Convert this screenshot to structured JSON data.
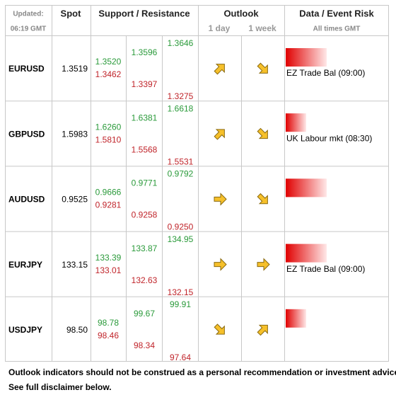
{
  "header": {
    "updated": "Updated:",
    "time": "06:19 GMT",
    "spot": "Spot",
    "levels": "Support / Resistance",
    "outlook": "Outlook",
    "day": "1 day",
    "week": "1 week",
    "data": "Data / Event Risk",
    "times": "All times GMT"
  },
  "rows": [
    {
      "pair": "EURUSD",
      "spot": "1.3519",
      "levels": [
        {
          "high": "1.3520",
          "low": "1.3462"
        },
        {
          "high": "1.3596",
          "low": "1.3397"
        },
        {
          "high": "1.3646",
          "low": "1.3275"
        }
      ],
      "outlook_day": "up-right",
      "outlook_week": "down-right",
      "risk": "high",
      "event": "EZ Trade Bal (09:00)"
    },
    {
      "pair": "GBPUSD",
      "spot": "1.5983",
      "levels": [
        {
          "high": "1.6260",
          "low": "1.5810"
        },
        {
          "high": "1.6381",
          "low": "1.5568"
        },
        {
          "high": "1.6618",
          "low": "1.5531"
        }
      ],
      "outlook_day": "up-right",
      "outlook_week": "down-right",
      "risk": "low",
      "event": "UK Labour mkt (08:30)"
    },
    {
      "pair": "AUDUSD",
      "spot": "0.9525",
      "levels": [
        {
          "high": "0.9666",
          "low": "0.9281"
        },
        {
          "high": "0.9771",
          "low": "0.9258"
        },
        {
          "high": "0.9792",
          "low": "0.9250"
        }
      ],
      "outlook_day": "right",
      "outlook_week": "down-right",
      "risk": "high"
    },
    {
      "pair": "EURJPY",
      "spot": "133.15",
      "levels": [
        {
          "high": "133.39",
          "low": "133.01"
        },
        {
          "high": "133.87",
          "low": "132.63"
        },
        {
          "high": "134.95",
          "low": "132.15"
        }
      ],
      "outlook_day": "right",
      "outlook_week": "right",
      "risk": "high",
      "event": "EZ Trade Bal (09:00)"
    },
    {
      "pair": "USDJPY",
      "spot": "98.50",
      "levels": [
        {
          "high": "98.78",
          "low": "98.46"
        },
        {
          "high": "99.67",
          "low": "98.34"
        },
        {
          "high": "99.91",
          "low": "97.64"
        }
      ],
      "outlook_day": "down-right",
      "outlook_week": "up-right",
      "risk": "low"
    }
  ],
  "footer": {
    "note": "Outlook indicators should not be construed as a personal recommendation or investment advice.",
    "disclaimer": "See full disclaimer below."
  }
}
